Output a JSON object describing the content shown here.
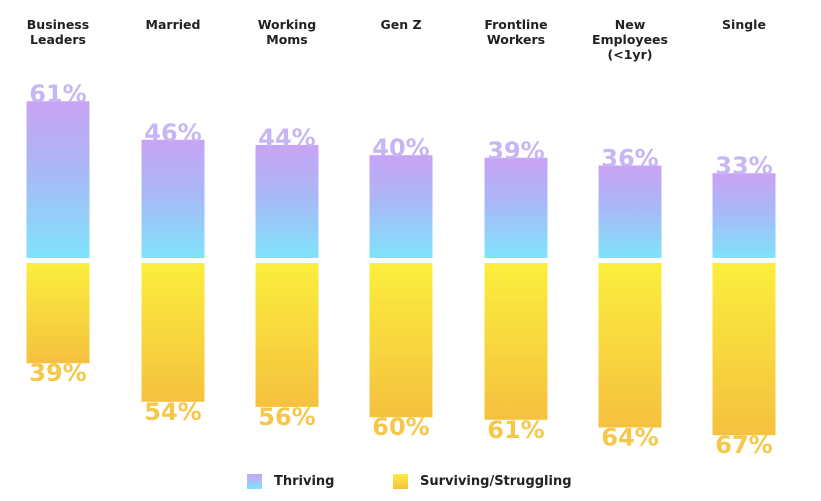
{
  "chart_data": {
    "type": "bar",
    "subtype": "diverging-stacked",
    "categories": [
      "Business Leaders",
      "Married",
      "Working Moms",
      "Gen Z",
      "Frontline Workers",
      "New Employees (<1yr)",
      "Single"
    ],
    "category_label_lines": [
      [
        "Business",
        "Leaders"
      ],
      [
        "Married"
      ],
      [
        "Working",
        "Moms"
      ],
      [
        "Gen Z"
      ],
      [
        "Frontline",
        "Workers"
      ],
      [
        "New",
        "Employees",
        "(<1yr)"
      ],
      [
        "Single"
      ]
    ],
    "series": [
      {
        "name": "Thriving",
        "values": [
          61,
          46,
          44,
          40,
          39,
          36,
          33
        ],
        "labels": [
          "61%",
          "46%",
          "44%",
          "40%",
          "39%",
          "36%",
          "33%"
        ],
        "direction": "up"
      },
      {
        "name": "Surviving/Struggling",
        "values": [
          39,
          54,
          56,
          60,
          61,
          64,
          67
        ],
        "labels": [
          "39%",
          "54%",
          "56%",
          "60%",
          "61%",
          "64%",
          "67%"
        ],
        "direction": "down"
      }
    ],
    "title": "",
    "xlabel": "",
    "ylabel": "",
    "unit": "%",
    "legend_position": "bottom-center",
    "grid": false
  },
  "legend": {
    "thriving_label": "Thriving",
    "surviving_label": "Surviving/Struggling"
  },
  "colors": {
    "thriving_top": "#c9a3f5",
    "thriving_mid": "#a9b8f7",
    "thriving_bottom": "#7fe3fb",
    "surviving_top": "#fbee3d",
    "surviving_bottom": "#f5c13f",
    "thriving_text": "#c6b6f3",
    "surviving_text": "#f5c84a",
    "label_text": "#222222"
  }
}
